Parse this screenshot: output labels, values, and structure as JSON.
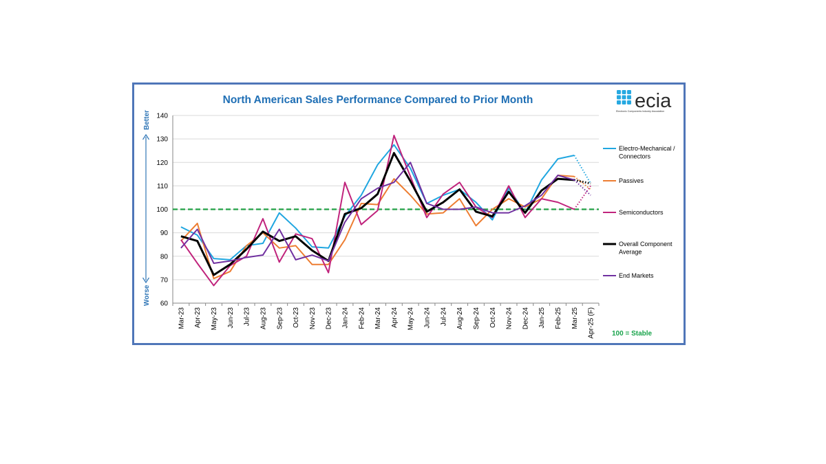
{
  "logo": {
    "name": "ecia",
    "subtitle": "Electronic Components Industry Association",
    "accent_color": "#27a9e1"
  },
  "side_labels": {
    "top": "Better",
    "bottom": "Worse"
  },
  "stable_note": "100 = Stable",
  "chart_data": {
    "type": "line",
    "title": "North American Sales Performance Compared to Prior Month",
    "xlabel": "",
    "ylabel": "",
    "ylim": [
      60,
      140
    ],
    "yticks": [
      60,
      70,
      80,
      90,
      100,
      110,
      120,
      130,
      140
    ],
    "grid": "horizontal",
    "legend_position": "right",
    "categories": [
      "Mar-23",
      "Apr-23",
      "May-23",
      "Jun-23",
      "Jul-23",
      "Aug-23",
      "Sep-23",
      "Oct-23",
      "Nov-23",
      "Dec-23",
      "Jan-24",
      "Feb-24",
      "Mar-24",
      "Apr-24",
      "May-24",
      "Jun-24",
      "Jul-24",
      "Aug-24",
      "Sep-24",
      "Oct-24",
      "Nov-24",
      "Dec-24",
      "Jan-25",
      "Feb-25",
      "Mar-25",
      "Apr-25 (F)"
    ],
    "reference_line": {
      "value": 100,
      "color": "#22a045",
      "style": "dashed"
    },
    "forecast_from_index": 24,
    "series": [
      {
        "name": "Electro-Mechanical / Connectors",
        "color": "#1fa6e0",
        "values": [
          92.5,
          89,
          79,
          78.5,
          84.5,
          85.5,
          98.5,
          92,
          84,
          83.5,
          97,
          106,
          119,
          127.5,
          117.5,
          102.5,
          106,
          108.5,
          103,
          95.5,
          109,
          98.5,
          112.5,
          121.5,
          123,
          111
        ]
      },
      {
        "name": "Passives",
        "color": "#ed7d31",
        "values": [
          86.5,
          94,
          70.5,
          73.5,
          84.5,
          90,
          83.5,
          84.5,
          76.5,
          76.5,
          87,
          102.5,
          102,
          113,
          106,
          98,
          98.5,
          104.5,
          93,
          100,
          104.5,
          101,
          104.5,
          114.5,
          114,
          108.5
        ]
      },
      {
        "name": "Semiconductors",
        "color": "#c0237c",
        "values": [
          87,
          77,
          67.5,
          76,
          80,
          96,
          77.5,
          89.5,
          87.5,
          73,
          111.5,
          93.5,
          99.5,
          131.5,
          114,
          96.5,
          106.5,
          111.5,
          101,
          96.5,
          110,
          96.5,
          104.5,
          103,
          100,
          110
        ]
      },
      {
        "name": "Overall Component Average",
        "color": "#000000",
        "values": [
          88.5,
          86.5,
          72,
          76.5,
          83,
          90.5,
          86.5,
          88.5,
          82.5,
          78,
          98,
          100.5,
          106.5,
          124,
          112,
          99,
          103,
          108.5,
          99,
          97,
          107.5,
          98.5,
          108,
          113,
          112.5,
          111
        ]
      },
      {
        "name": "End Markets",
        "color": "#7030a0",
        "values": [
          83.5,
          91.5,
          77,
          78,
          79.5,
          80.5,
          91.5,
          78.5,
          80.5,
          78,
          94.5,
          104.5,
          109,
          111.5,
          120,
          102.5,
          100,
          100,
          101,
          98.5,
          98.5,
          101.5,
          106,
          114.5,
          112.5,
          106
        ]
      }
    ]
  }
}
